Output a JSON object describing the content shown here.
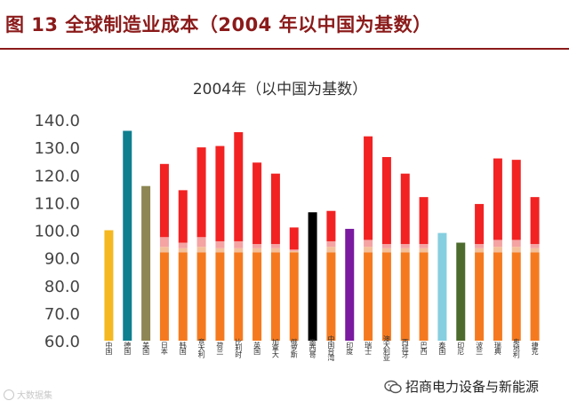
{
  "figure": {
    "title": "图 13  全球制造业成本（2004 年以中国为基数）"
  },
  "footer": {
    "watermark_left": "大数据集",
    "source_account": "招商电力设备与新能源"
  },
  "colors": {
    "header": "#8b1a1a",
    "base_orange": "#f57a1f",
    "light_band": "#f4c09a",
    "pink_band": "#f5a3a3",
    "red_segment": "#f22222",
    "china": "#f5b820",
    "germany": "#0e7f8f",
    "usa": "#8e8654",
    "russia_top": "#f22222",
    "mexico": "#000000",
    "india": "#7a1aa0",
    "thailand": "#86cfe0",
    "indonesia": "#4e6b2e"
  },
  "chart_data": {
    "type": "bar",
    "stacked": true,
    "title": "2004年（以中国为基数）",
    "ylim": [
      60,
      140
    ],
    "yticks": [
      "140.0",
      "130.0",
      "120.0",
      "110.0",
      "100.0",
      "90.0",
      "80.0",
      "70.0",
      "60.0"
    ],
    "grid": false,
    "categories": [
      "中国",
      "德国",
      "美国",
      "日本",
      "韩国",
      "意大利",
      "荷兰",
      "比利时",
      "英国",
      "加拿大",
      "俄罗斯",
      "墨西哥",
      "中国台湾",
      "印度",
      "瑞士",
      "澳大利亚",
      "西班牙",
      "巴西",
      "泰国",
      "印尼",
      "波兰",
      "瑞典",
      "奥地利",
      "捷克"
    ],
    "bars": [
      {
        "category": "中国",
        "solid_color": "china",
        "total": 100
      },
      {
        "category": "德国",
        "solid_color": "germany",
        "total": 136
      },
      {
        "category": "美国",
        "solid_color": "usa",
        "total": 116
      },
      {
        "category": "日本",
        "segments": [
          92,
          94,
          97.5,
          124
        ]
      },
      {
        "category": "韩国",
        "segments": [
          92,
          93.5,
          95.5,
          114.5
        ]
      },
      {
        "category": "意大利",
        "segments": [
          92,
          94,
          97.5,
          130
        ]
      },
      {
        "category": "荷兰",
        "segments": [
          92,
          93.5,
          96,
          130.5
        ]
      },
      {
        "category": "比利时",
        "segments": [
          92,
          93.5,
          96,
          135.5
        ]
      },
      {
        "category": "英国",
        "segments": [
          92,
          93.5,
          95,
          124.5
        ]
      },
      {
        "category": "加拿大",
        "segments": [
          92,
          93.5,
          95,
          120.5
        ]
      },
      {
        "category": "俄罗斯",
        "segments": [
          92,
          92.5,
          93,
          101
        ]
      },
      {
        "category": "墨西哥",
        "solid_color": "mexico",
        "total": 106.5
      },
      {
        "category": "中国台湾",
        "segments": [
          92,
          94,
          96,
          107
        ]
      },
      {
        "category": "印度",
        "solid_color": "india",
        "total": 100.5
      },
      {
        "category": "瑞士",
        "segments": [
          92,
          94,
          96.5,
          134
        ]
      },
      {
        "category": "澳大利亚",
        "segments": [
          92,
          93.5,
          95,
          126.5
        ]
      },
      {
        "category": "西班牙",
        "segments": [
          92,
          93.5,
          95,
          120.5
        ]
      },
      {
        "category": "巴西",
        "segments": [
          92,
          93.5,
          95,
          112
        ]
      },
      {
        "category": "泰国",
        "solid_color": "thailand",
        "total": 99
      }
    ],
    "bars_continued": [
      {
        "category": "印尼",
        "solid_color": "indonesia",
        "total": 95.5
      },
      {
        "category": "波兰",
        "segments": [
          92,
          93.5,
          95,
          109.5
        ]
      },
      {
        "category": "瑞典",
        "segments": [
          92,
          94,
          96.5,
          126
        ]
      },
      {
        "category": "奥地利",
        "segments": [
          92,
          94,
          96.5,
          125.5
        ]
      },
      {
        "category": "捷克",
        "segments": [
          92,
          93.5,
          95,
          112
        ]
      }
    ]
  }
}
